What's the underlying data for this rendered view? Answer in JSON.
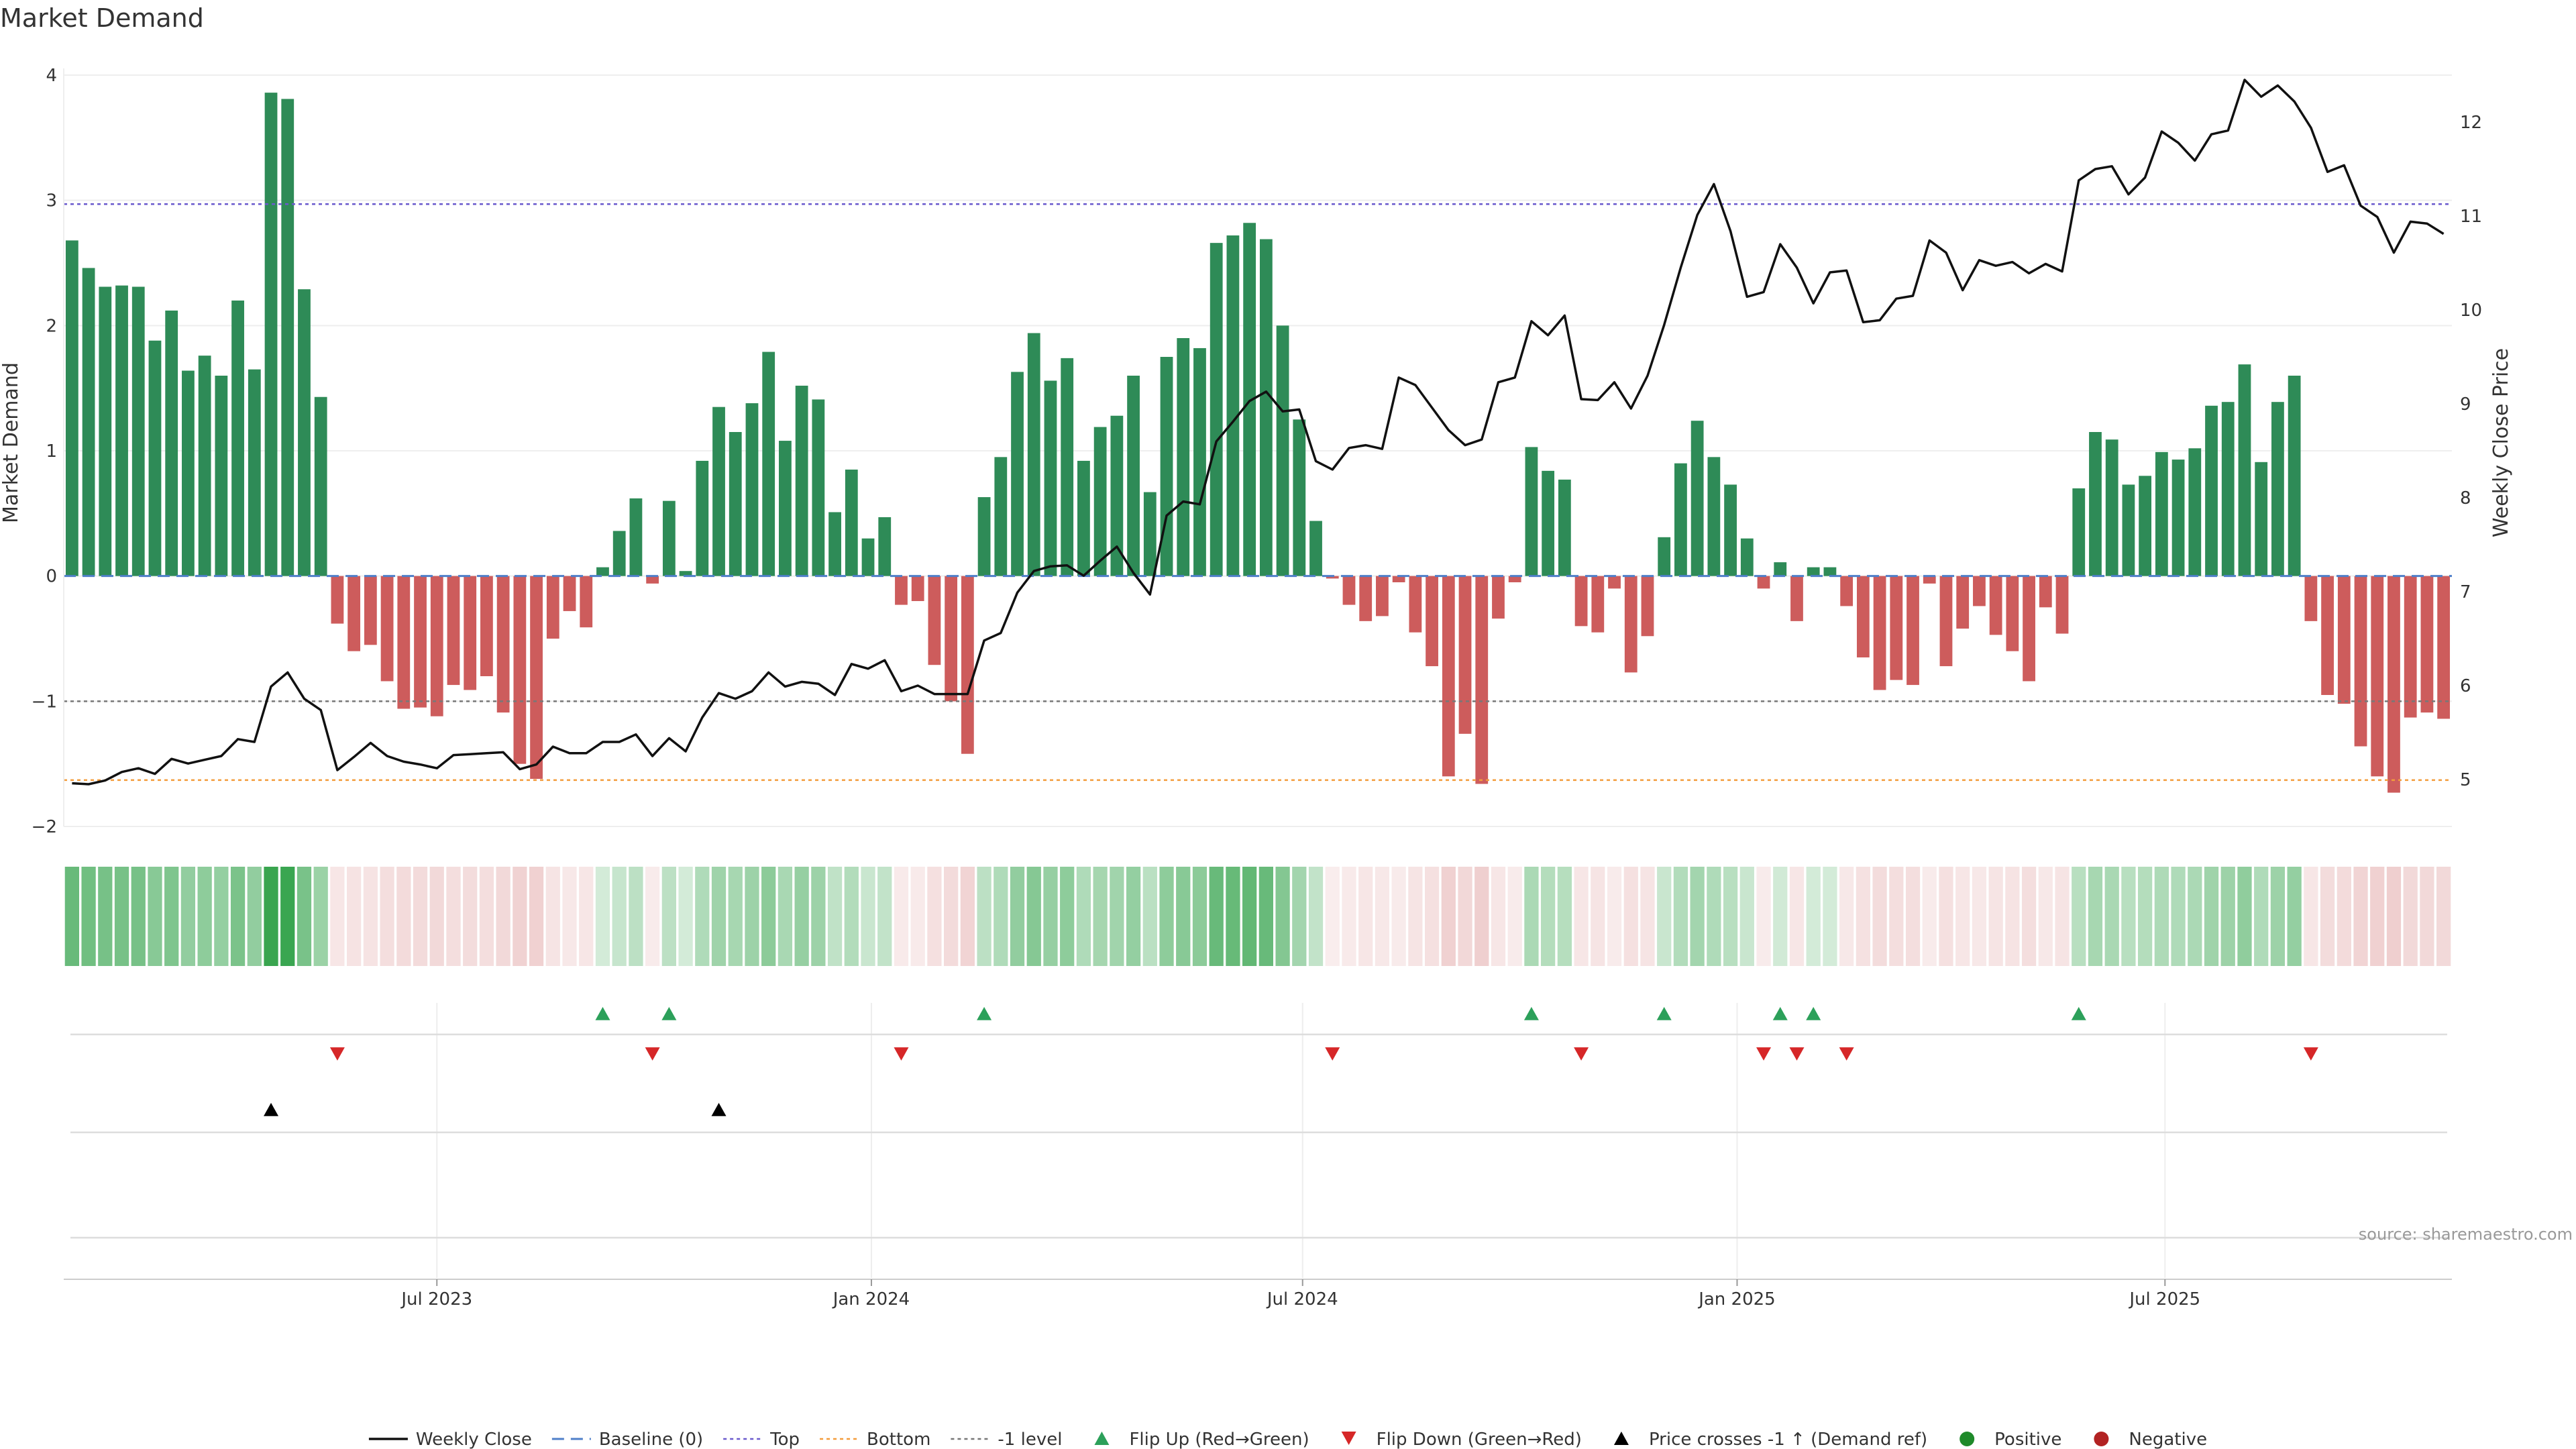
{
  "chart_data": {
    "type": "bar",
    "title": "Market Demand",
    "ylabel": "Market Demand",
    "y2label": "Weekly Close Price",
    "ylim": [
      -2.0,
      4.0
    ],
    "y2lim": [
      4.5,
      12.5
    ],
    "yticks": [
      "−2",
      "−1",
      "0",
      "1",
      "2",
      "3",
      "4"
    ],
    "ytick_values": [
      -2,
      -1,
      0,
      1,
      2,
      3,
      4
    ],
    "y2ticks": [
      "5",
      "6",
      "7",
      "8",
      "9",
      "10",
      "11",
      "12"
    ],
    "y2tick_values": [
      5,
      6,
      7,
      8,
      9,
      10,
      11,
      12
    ],
    "xticks": [
      "Jul 2023",
      "Jan 2024",
      "Jul 2024",
      "Jan 2025",
      "Jul 2025"
    ],
    "xtick_index": [
      22,
      48.2,
      74.2,
      100.4,
      126.2
    ],
    "top_level": 2.97,
    "bottom_level": -1.63,
    "minus1_level": -1.0,
    "demand": [
      2.68,
      2.46,
      2.31,
      2.32,
      2.31,
      1.88,
      2.12,
      1.64,
      1.76,
      1.6,
      2.2,
      1.65,
      3.86,
      3.81,
      2.29,
      1.43,
      -0.38,
      -0.6,
      -0.55,
      -0.84,
      -1.06,
      -1.05,
      -1.12,
      -0.87,
      -0.91,
      -0.8,
      -1.09,
      -1.5,
      -1.62,
      -0.5,
      -0.28,
      -0.41,
      0.07,
      0.36,
      0.62,
      -0.06,
      0.6,
      0.04,
      0.92,
      1.35,
      1.15,
      1.38,
      1.79,
      1.08,
      1.52,
      1.41,
      0.51,
      0.85,
      0.3,
      0.47,
      -0.23,
      -0.2,
      -0.71,
      -1.0,
      -1.42,
      0.63,
      0.95,
      1.63,
      1.94,
      1.56,
      1.74,
      0.92,
      1.19,
      1.28,
      1.6,
      0.67,
      1.75,
      1.9,
      1.82,
      2.66,
      2.72,
      2.82,
      2.69,
      2.0,
      1.25,
      0.44,
      -0.02,
      -0.23,
      -0.36,
      -0.32,
      -0.05,
      -0.45,
      -0.72,
      -1.6,
      -1.26,
      -1.66,
      -0.34,
      -0.05,
      1.03,
      0.84,
      0.77,
      -0.4,
      -0.45,
      -0.1,
      -0.77,
      -0.48,
      0.31,
      0.9,
      1.24,
      0.95,
      0.73,
      0.3,
      -0.1,
      0.11,
      -0.36,
      0.07,
      0.07,
      -0.24,
      -0.65,
      -0.91,
      -0.83,
      -0.87,
      -0.06,
      -0.72,
      -0.42,
      -0.24,
      -0.47,
      -0.6,
      -0.84,
      -0.25,
      -0.46,
      0.7,
      1.15,
      1.09,
      0.73,
      0.8,
      0.99,
      0.93,
      1.02,
      1.36,
      1.39,
      1.69,
      0.91,
      1.39,
      1.6,
      -0.36,
      -0.95,
      -1.02,
      -1.36,
      -1.6,
      -1.73,
      -1.13,
      -1.09,
      -1.14
    ],
    "weekly_close": [
      4.96,
      4.95,
      4.99,
      5.08,
      5.12,
      5.06,
      5.22,
      5.17,
      5.21,
      5.25,
      5.43,
      5.4,
      5.99,
      6.14,
      5.86,
      5.74,
      5.1,
      5.24,
      5.39,
      5.25,
      5.19,
      5.16,
      5.12,
      5.26,
      5.27,
      5.28,
      5.29,
      5.11,
      5.16,
      5.35,
      5.28,
      5.28,
      5.4,
      5.4,
      5.48,
      5.25,
      5.44,
      5.3,
      5.66,
      5.92,
      5.86,
      5.94,
      6.14,
      5.99,
      6.04,
      6.02,
      5.9,
      6.23,
      6.18,
      6.27,
      5.94,
      6.0,
      5.91,
      5.91,
      5.91,
      6.48,
      6.56,
      6.99,
      7.22,
      7.27,
      7.28,
      7.17,
      7.33,
      7.48,
      7.2,
      6.97,
      7.81,
      7.96,
      7.93,
      8.6,
      8.81,
      9.03,
      9.13,
      8.92,
      8.94,
      8.39,
      8.3,
      8.53,
      8.56,
      8.52,
      9.28,
      9.2,
      8.96,
      8.72,
      8.56,
      8.62,
      9.23,
      9.28,
      9.88,
      9.73,
      9.94,
      9.05,
      9.04,
      9.23,
      8.95,
      9.3,
      9.84,
      10.45,
      11.01,
      11.34,
      10.84,
      10.14,
      10.19,
      10.7,
      10.45,
      10.07,
      10.4,
      10.42,
      9.87,
      9.89,
      10.12,
      10.15,
      10.74,
      10.61,
      10.21,
      10.53,
      10.47,
      10.51,
      10.39,
      10.49,
      10.41,
      11.38,
      11.5,
      11.53,
      11.23,
      11.41,
      11.9,
      11.78,
      11.59,
      11.87,
      11.91,
      12.45,
      12.27,
      12.39,
      12.22,
      11.94,
      11.47,
      11.54,
      11.11,
      10.99,
      10.61,
      10.94,
      10.92,
      10.81
    ],
    "flip_up_index": [
      32,
      36,
      55,
      88,
      96,
      103,
      105,
      121
    ],
    "flip_down_index": [
      16,
      35,
      50,
      76,
      91,
      102,
      104,
      107,
      135
    ],
    "price_cross_index": [
      12,
      39
    ],
    "colors": {
      "positive_bar": "#2e8b57",
      "negative_bar": "#cd5c5c",
      "price_line": "#111111",
      "baseline": "#4f7fc9",
      "top_line": "#6a5acd",
      "bottom_line": "#f39c3c",
      "minus1_line": "#777777",
      "flip_up": "#2ca05a",
      "flip_down": "#d62728",
      "price_cross": "#000000",
      "positive_dot": "#1f8a2a",
      "negative_dot": "#b22222"
    },
    "legend": [
      {
        "label": "Weekly Close",
        "kind": "line"
      },
      {
        "label": "Baseline (0)",
        "kind": "dash-blue"
      },
      {
        "label": "Top",
        "kind": "dot-purple"
      },
      {
        "label": "Bottom",
        "kind": "dot-orange"
      },
      {
        "label": "-1 level",
        "kind": "dot-gray"
      },
      {
        "label": "Flip Up (Red→Green)",
        "kind": "tri-up-green"
      },
      {
        "label": "Flip Down (Green→Red)",
        "kind": "tri-down-red"
      },
      {
        "label": "Price crosses -1 ↑ (Demand ref)",
        "kind": "tri-up-black"
      },
      {
        "label": "Positive",
        "kind": "dot-green"
      },
      {
        "label": "Negative",
        "kind": "dot-red"
      }
    ],
    "legend_placement": "bottom-center",
    "source": "source: sharemaestro.com",
    "grid": true
  }
}
